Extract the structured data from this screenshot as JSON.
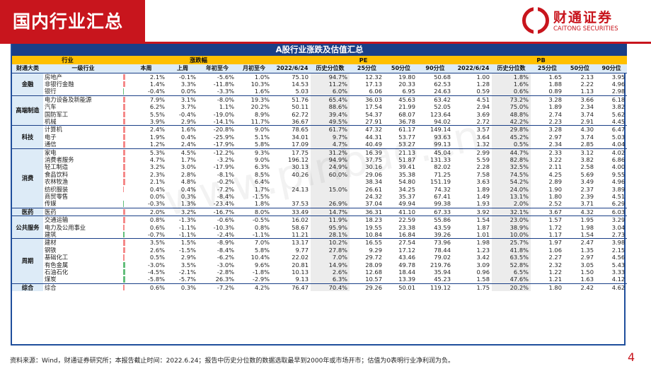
{
  "header": {
    "title": "国内行业汇总",
    "logo_cn": "财通证券",
    "logo_en": "CAITONG SECURITIES"
  },
  "table": {
    "title": "A股行业涨跌及估值汇总",
    "group_headers": {
      "industry": "行业",
      "change": "涨跌幅",
      "pe": "PE",
      "pb": "PB"
    },
    "columns": [
      "财通大类",
      "一级行业",
      "本周",
      "上周",
      "年初至今",
      "月初至今",
      "2022/6/24",
      "历史分位数",
      "25分位",
      "50分位",
      "90分位",
      "2022/6/24",
      "历史分位数",
      "25分位",
      "50分位",
      "90分位"
    ],
    "groups": [
      {
        "name": "金融",
        "rows": [
          [
            "房地产",
            "2.1%",
            "-0.1%",
            "-5.6%",
            "1.0%",
            "75.10",
            "94.7%",
            "12.32",
            "19.80",
            "50.68",
            "1.00",
            "1.8%",
            "1.65",
            "2.13",
            "3.95"
          ],
          [
            "非银行金融",
            "1.4%",
            "3.3%",
            "-11.8%",
            "10.3%",
            "14.53",
            "11.2%",
            "17.13",
            "20.33",
            "62.53",
            "1.28",
            "1.6%",
            "1.88",
            "2.22",
            "4.96"
          ],
          [
            "银行",
            "-0.4%",
            "0.0%",
            "-3.3%",
            "1.6%",
            "5.03",
            "6.0%",
            "6.06",
            "6.95",
            "24.63",
            "0.59",
            "0.6%",
            "0.89",
            "1.13",
            "2.98"
          ]
        ]
      },
      {
        "name": "高端制造",
        "rows": [
          [
            "电力设备及新能源",
            "7.9%",
            "3.1%",
            "-8.0%",
            "19.3%",
            "51.76",
            "65.4%",
            "36.03",
            "45.63",
            "63.42",
            "4.51",
            "73.2%",
            "3.28",
            "3.66",
            "6.18"
          ],
          [
            "汽车",
            "6.2%",
            "3.7%",
            "1.1%",
            "20.2%",
            "50.11",
            "88.6%",
            "17.54",
            "21.99",
            "52.05",
            "2.94",
            "75.0%",
            "1.89",
            "2.34",
            "3.82"
          ],
          [
            "国防军工",
            "5.5%",
            "-0.4%",
            "-19.0%",
            "8.9%",
            "62.72",
            "39.4%",
            "54.37",
            "68.07",
            "123.64",
            "3.69",
            "48.8%",
            "2.74",
            "3.74",
            "5.62"
          ],
          [
            "机械",
            "3.9%",
            "2.9%",
            "-14.1%",
            "11.7%",
            "36.67",
            "49.5%",
            "27.91",
            "36.78",
            "94.02",
            "2.72",
            "42.2%",
            "2.23",
            "2.91",
            "4.45"
          ]
        ]
      },
      {
        "name": "科技",
        "rows": [
          [
            "计算机",
            "2.4%",
            "1.6%",
            "-20.8%",
            "9.0%",
            "78.65",
            "61.7%",
            "47.32",
            "61.17",
            "149.14",
            "3.57",
            "29.8%",
            "3.28",
            "4.30",
            "6.47"
          ],
          [
            "电子",
            "1.9%",
            "0.4%",
            "-25.9%",
            "5.1%",
            "34.01",
            "9.7%",
            "44.31",
            "53.77",
            "93.63",
            "3.64",
            "45.2%",
            "2.97",
            "3.74",
            "5.03"
          ],
          [
            "通信",
            "1.2%",
            "2.4%",
            "-17.9%",
            "5.8%",
            "17.09",
            "4.7%",
            "40.49",
            "53.27",
            "99.13",
            "1.32",
            "0.5%",
            "2.34",
            "2.85",
            "4.04"
          ]
        ]
      },
      {
        "name": "消费",
        "rows": [
          [
            "家电",
            "5.3%",
            "4.5%",
            "-12.2%",
            "9.3%",
            "17.75",
            "31.2%",
            "16.39",
            "21.13",
            "45.04",
            "2.99",
            "44.7%",
            "2.33",
            "3.12",
            "4.02"
          ],
          [
            "消费者服务",
            "4.7%",
            "1.7%",
            "-3.2%",
            "9.0%",
            "196.12",
            "94.9%",
            "37.75",
            "51.87",
            "131.33",
            "5.59",
            "82.8%",
            "3.22",
            "3.82",
            "6.86"
          ],
          [
            "轻工制造",
            "3.2%",
            "3.0%",
            "-17.9%",
            "6.3%",
            "30.13",
            "24.9%",
            "30.16",
            "39.41",
            "82.02",
            "2.28",
            "32.5%",
            "2.11",
            "2.58",
            "4.00"
          ],
          [
            "食品饮料",
            "2.3%",
            "2.8%",
            "-8.1%",
            "8.5%",
            "40.26",
            "60.0%",
            "29.06",
            "35.38",
            "71.25",
            "7.58",
            "74.5%",
            "4.25",
            "5.69",
            "9.55"
          ],
          [
            "农林牧渔",
            "2.1%",
            "4.8%",
            "-0.2%",
            "6.4%",
            "",
            "",
            "38.34",
            "54.80",
            "151.19",
            "3.63",
            "54.2%",
            "2.89",
            "3.49",
            "4.96"
          ],
          [
            "纺织服装",
            "0.4%",
            "0.4%",
            "-7.2%",
            "1.7%",
            "24.13",
            "15.0%",
            "26.61",
            "34.25",
            "74.32",
            "1.89",
            "24.0%",
            "1.90",
            "2.37",
            "3.89"
          ],
          [
            "商贸零售",
            "0.0%",
            "0.3%",
            "-8.4%",
            "-1.5%",
            "",
            "",
            "24.32",
            "35.37",
            "67.41",
            "1.49",
            "13.1%",
            "1.80",
            "2.39",
            "4.51"
          ],
          [
            "传媒",
            "-0.3%",
            "1.3%",
            "-23.4%",
            "1.8%",
            "37.53",
            "26.9%",
            "37.04",
            "49.94",
            "99.38",
            "1.93",
            "2.0%",
            "2.52",
            "3.71",
            "6.29"
          ]
        ]
      },
      {
        "name": "医药",
        "rows": [
          [
            "医药",
            "2.0%",
            "3.2%",
            "-16.7%",
            "8.0%",
            "33.49",
            "14.7%",
            "36.31",
            "41.10",
            "67.33",
            "3.92",
            "32.1%",
            "3.67",
            "4.32",
            "6.03"
          ]
        ]
      },
      {
        "name": "公共服务",
        "rows": [
          [
            "交通运输",
            "0.8%",
            "-1.3%",
            "-0.6%",
            "-0.5%",
            "16.02",
            "11.9%",
            "18.23",
            "22.59",
            "55.86",
            "1.54",
            "23.0%",
            "1.57",
            "1.95",
            "3.29"
          ],
          [
            "电力及公用事业",
            "0.6%",
            "-1.1%",
            "-10.3%",
            "0.8%",
            "58.67",
            "95.9%",
            "19.55",
            "23.38",
            "43.59",
            "1.87",
            "38.9%",
            "1.72",
            "1.98",
            "3.04"
          ],
          [
            "建筑",
            "-0.7%",
            "-1.1%",
            "-2.4%",
            "-1.1%",
            "11.21",
            "28.1%",
            "10.84",
            "16.84",
            "39.26",
            "1.01",
            "10.0%",
            "1.17",
            "1.54",
            "2.73"
          ]
        ]
      },
      {
        "name": "周期",
        "rows": [
          [
            "建材",
            "3.5%",
            "1.5%",
            "-8.9%",
            "7.0%",
            "13.17",
            "10.2%",
            "16.55",
            "27.54",
            "73.96",
            "1.98",
            "25.7%",
            "1.97",
            "2.47",
            "3.98"
          ],
          [
            "钢铁",
            "2.6%",
            "-1.5%",
            "-8.4%",
            "5.8%",
            "9.77",
            "27.8%",
            "9.29",
            "17.12",
            "78.44",
            "1.23",
            "41.8%",
            "1.06",
            "1.35",
            "2.15"
          ],
          [
            "基础化工",
            "0.5%",
            "2.9%",
            "-6.2%",
            "10.4%",
            "22.02",
            "7.0%",
            "29.72",
            "43.46",
            "79.02",
            "3.42",
            "63.5%",
            "2.27",
            "2.97",
            "4.56"
          ],
          [
            "有色金属",
            "-3.0%",
            "3.5%",
            "-3.0%",
            "9.6%",
            "20.81",
            "14.9%",
            "28.09",
            "49.78",
            "219.76",
            "3.09",
            "52.8%",
            "2.32",
            "3.05",
            "5.43"
          ],
          [
            "石油石化",
            "-4.5%",
            "-2.1%",
            "-2.8%",
            "-1.8%",
            "10.13",
            "2.6%",
            "12.68",
            "18.44",
            "35.94",
            "0.96",
            "6.5%",
            "1.22",
            "1.50",
            "3.33"
          ],
          [
            "煤炭",
            "-5.8%",
            "-5.7%",
            "26.3%",
            "-2.9%",
            "9.13",
            "6.3%",
            "10.57",
            "13.39",
            "45.23",
            "1.58",
            "47.6%",
            "1.21",
            "1.63",
            "4.12"
          ]
        ]
      },
      {
        "name": "综合",
        "rows": [
          [
            "综合",
            "0.6%",
            "0.3%",
            "-7.2%",
            "4.2%",
            "76.47",
            "70.4%",
            "29.26",
            "50.01",
            "119.12",
            "1.75",
            "20.2%",
            "1.80",
            "2.42",
            "4.62"
          ]
        ]
      }
    ],
    "bar_colors": {
      "positive": "#f58989",
      "negative": "#63be7b"
    }
  },
  "footer": {
    "note": "资料来源：Wind，财通证券研究所；本报告截止时间：2022.6.24；报告中历史分位数的数据选取最早到2000年或市场开市；估值为0表明行业净利润为负。",
    "page": "4"
  }
}
